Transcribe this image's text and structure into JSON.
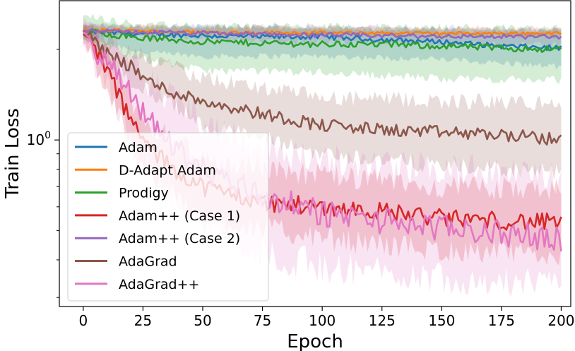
{
  "chart_data": {
    "type": "line",
    "xlabel": "Epoch",
    "ylabel": "Train Loss",
    "y_scale": "log",
    "xlim": [
      -10,
      204
    ],
    "ylim": [
      0.28,
      2.9
    ],
    "x_ticks": [
      {
        "value": 0,
        "label": "0"
      },
      {
        "value": 25,
        "label": "25"
      },
      {
        "value": 50,
        "label": "50"
      },
      {
        "value": 75,
        "label": "75"
      },
      {
        "value": 100,
        "label": "100"
      },
      {
        "value": 125,
        "label": "125"
      },
      {
        "value": 150,
        "label": "150"
      },
      {
        "value": 175,
        "label": "175"
      },
      {
        "value": 200,
        "label": "200"
      }
    ],
    "y_ticks": [
      {
        "value": 1.0,
        "label": "10",
        "exp": "0"
      }
    ],
    "y_minor_ticks": [
      0.3,
      0.4,
      0.5,
      0.6,
      0.7,
      0.8,
      0.9,
      2,
      3
    ],
    "grid": false,
    "legend_position": "lower-left",
    "series": [
      {
        "name": "Adam",
        "color": "#1f77b4",
        "mean": [
          [
            0,
            2.3
          ],
          [
            10,
            2.27
          ],
          [
            25,
            2.25
          ],
          [
            50,
            2.22
          ],
          [
            75,
            2.2
          ],
          [
            100,
            2.2
          ],
          [
            125,
            2.15
          ],
          [
            150,
            2.12
          ],
          [
            175,
            2.05
          ],
          [
            200,
            2.02
          ]
        ],
        "band_lo": [
          [
            0,
            2.2
          ],
          [
            25,
            1.95
          ],
          [
            50,
            1.9
          ],
          [
            100,
            1.9
          ],
          [
            150,
            1.85
          ],
          [
            200,
            1.75
          ]
        ],
        "band_hi": [
          [
            0,
            2.4
          ],
          [
            100,
            2.35
          ],
          [
            200,
            2.3
          ]
        ],
        "noise": 0.02
      },
      {
        "name": "D-Adapt Adam",
        "color": "#ff7f0e",
        "mean": [
          [
            0,
            2.32
          ],
          [
            50,
            2.28
          ],
          [
            100,
            2.27
          ],
          [
            150,
            2.26
          ],
          [
            200,
            2.26
          ]
        ],
        "band_lo": [
          [
            0,
            2.25
          ],
          [
            200,
            2.2
          ]
        ],
        "band_hi": [
          [
            0,
            2.4
          ],
          [
            200,
            2.34
          ]
        ],
        "noise": 0.012
      },
      {
        "name": "Prodigy",
        "color": "#2ca02c",
        "mean": [
          [
            0,
            2.3
          ],
          [
            25,
            2.18
          ],
          [
            50,
            2.12
          ],
          [
            75,
            2.1
          ],
          [
            100,
            2.08
          ],
          [
            125,
            2.08
          ],
          [
            150,
            2.05
          ],
          [
            175,
            2.02
          ],
          [
            200,
            2.0
          ]
        ],
        "band_lo": [
          [
            0,
            2.15
          ],
          [
            25,
            1.85
          ],
          [
            50,
            1.7
          ],
          [
            100,
            1.68
          ],
          [
            150,
            1.6
          ],
          [
            200,
            1.58
          ]
        ],
        "band_hi": [
          [
            0,
            2.6
          ],
          [
            25,
            2.4
          ],
          [
            100,
            2.38
          ],
          [
            200,
            2.35
          ]
        ],
        "noise": 0.025
      },
      {
        "name": "Adam++ (Case 1)",
        "color": "#d62728",
        "mean": [
          [
            0,
            2.25
          ],
          [
            5,
            2.05
          ],
          [
            10,
            1.7
          ],
          [
            15,
            1.4
          ],
          [
            20,
            1.15
          ],
          [
            25,
            1.0
          ],
          [
            30,
            0.9
          ],
          [
            40,
            0.78
          ],
          [
            50,
            0.7
          ],
          [
            75,
            0.62
          ],
          [
            100,
            0.6
          ],
          [
            125,
            0.58
          ],
          [
            150,
            0.55
          ],
          [
            175,
            0.54
          ],
          [
            200,
            0.53
          ]
        ],
        "band_lo": [
          [
            0,
            2.1
          ],
          [
            10,
            1.45
          ],
          [
            20,
            0.95
          ],
          [
            30,
            0.72
          ],
          [
            50,
            0.55
          ],
          [
            100,
            0.47
          ],
          [
            150,
            0.43
          ],
          [
            200,
            0.41
          ]
        ],
        "band_hi": [
          [
            0,
            2.4
          ],
          [
            10,
            1.95
          ],
          [
            20,
            1.35
          ],
          [
            30,
            1.08
          ],
          [
            50,
            0.86
          ],
          [
            100,
            0.76
          ],
          [
            150,
            0.7
          ],
          [
            200,
            0.68
          ]
        ],
        "noise": 0.07
      },
      {
        "name": "Adam++ (Case 2)",
        "color": "#9467bd",
        "mean": [
          [
            0,
            2.3
          ],
          [
            50,
            2.26
          ],
          [
            100,
            2.23
          ],
          [
            150,
            2.21
          ],
          [
            200,
            2.2
          ]
        ],
        "band_lo": [
          [
            0,
            2.22
          ],
          [
            100,
            2.1
          ],
          [
            200,
            2.08
          ]
        ],
        "band_hi": [
          [
            0,
            2.4
          ],
          [
            200,
            2.34
          ]
        ],
        "noise": 0.018
      },
      {
        "name": "AdaGrad",
        "color": "#8c564b",
        "mean": [
          [
            0,
            2.3
          ],
          [
            5,
            2.1
          ],
          [
            10,
            1.95
          ],
          [
            15,
            1.85
          ],
          [
            20,
            1.75
          ],
          [
            25,
            1.62
          ],
          [
            30,
            1.52
          ],
          [
            40,
            1.42
          ],
          [
            50,
            1.35
          ],
          [
            75,
            1.22
          ],
          [
            100,
            1.12
          ],
          [
            125,
            1.08
          ],
          [
            150,
            1.06
          ],
          [
            175,
            1.04
          ],
          [
            200,
            1.0
          ]
        ],
        "band_lo": [
          [
            0,
            2.15
          ],
          [
            20,
            1.55
          ],
          [
            50,
            1.12
          ],
          [
            100,
            0.9
          ],
          [
            150,
            0.82
          ],
          [
            200,
            0.78
          ]
        ],
        "band_hi": [
          [
            0,
            2.45
          ],
          [
            20,
            1.95
          ],
          [
            50,
            1.6
          ],
          [
            100,
            1.38
          ],
          [
            150,
            1.35
          ],
          [
            200,
            1.32
          ]
        ],
        "noise": 0.05
      },
      {
        "name": "AdaGrad++",
        "color": "#e377c2",
        "mean": [
          [
            0,
            2.3
          ],
          [
            5,
            2.0
          ],
          [
            10,
            1.8
          ],
          [
            15,
            1.6
          ],
          [
            20,
            1.4
          ],
          [
            25,
            1.25
          ],
          [
            30,
            1.1
          ],
          [
            40,
            0.92
          ],
          [
            50,
            0.8
          ],
          [
            75,
            0.65
          ],
          [
            100,
            0.57
          ],
          [
            125,
            0.54
          ],
          [
            150,
            0.51
          ],
          [
            175,
            0.49
          ],
          [
            200,
            0.47
          ]
        ],
        "band_lo": [
          [
            0,
            2.05
          ],
          [
            10,
            1.45
          ],
          [
            20,
            1.05
          ],
          [
            30,
            0.75
          ],
          [
            50,
            0.52
          ],
          [
            75,
            0.42
          ],
          [
            100,
            0.38
          ],
          [
            150,
            0.35
          ],
          [
            200,
            0.33
          ]
        ],
        "band_hi": [
          [
            0,
            2.5
          ],
          [
            10,
            2.1
          ],
          [
            20,
            1.75
          ],
          [
            30,
            1.5
          ],
          [
            50,
            1.15
          ],
          [
            75,
            0.95
          ],
          [
            100,
            0.85
          ],
          [
            150,
            0.8
          ],
          [
            200,
            0.75
          ]
        ],
        "noise": 0.1
      }
    ]
  }
}
